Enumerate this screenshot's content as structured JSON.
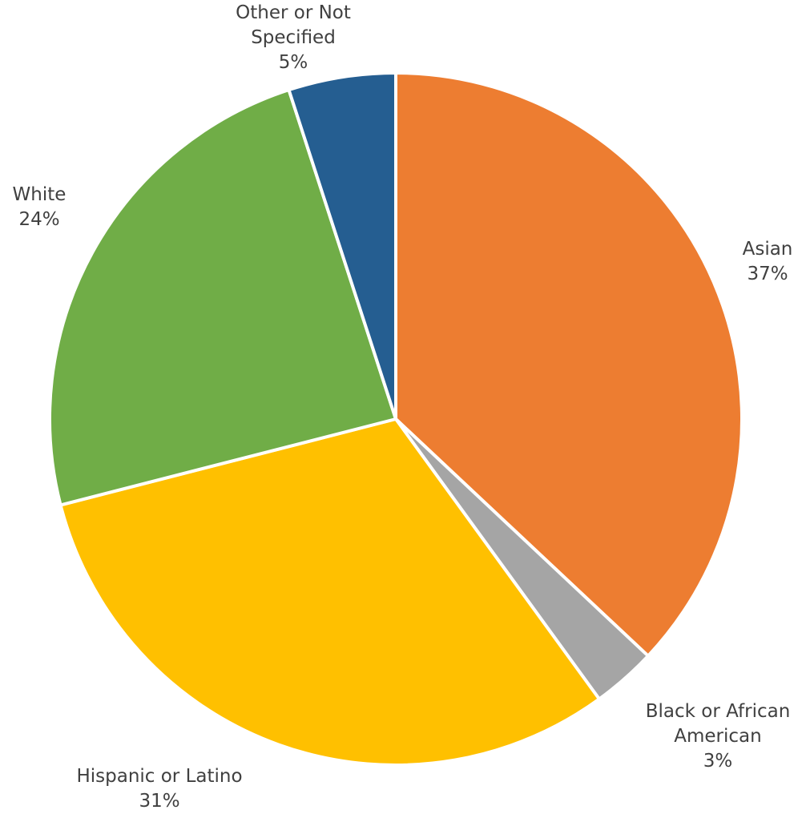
{
  "chart_data": {
    "type": "pie",
    "categories": [
      "Asian",
      "Black or African American",
      "Hispanic or Latino",
      "White",
      "Other or Not Specified"
    ],
    "values": [
      37,
      3,
      31,
      24,
      5
    ],
    "value_labels": [
      "37%",
      "3%",
      "31%",
      "24%",
      "5%"
    ],
    "label_lines": [
      [
        "Asian"
      ],
      [
        "Black or African",
        "American"
      ],
      [
        "Hispanic or Latino"
      ],
      [
        "White"
      ],
      [
        "Other or Not",
        "Specified"
      ]
    ],
    "colors": [
      "#ED7D31",
      "#A5A5A5",
      "#FFC000",
      "#70AD47",
      "#255E91"
    ],
    "start_angle_deg": 0,
    "direction": "clockwise",
    "legend": "none",
    "title": ""
  }
}
